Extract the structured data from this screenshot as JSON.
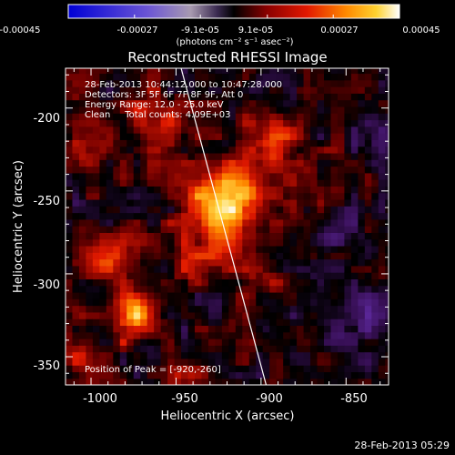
{
  "chart_data": {
    "type": "heatmap",
    "title": "Reconstructed RHESSI Image",
    "xlabel": "Heliocentric X (arcsec)",
    "ylabel": "Heliocentric Y (arcsec)",
    "xlim": [
      -1015,
      -825
    ],
    "ylim": [
      -367,
      -176
    ],
    "x_ticks": [
      -1000,
      -950,
      -900,
      -850
    ],
    "y_ticks": [
      -200,
      -250,
      -300,
      -350
    ],
    "colorbar": {
      "ticks": [
        "-0.00045",
        "-0.00027",
        "-9.1e-05",
        "9.1e-05",
        "0.00027",
        "0.00045"
      ],
      "range": [
        -0.00045,
        0.00045
      ],
      "units": "(photons cm⁻² s⁻¹ asec⁻²)"
    },
    "annotations": [
      "28-Feb-2013 10:44:12.000 to 10:47:28.000",
      "Detectors: 3F 5F 6F 7F 8F 9F, Att 0",
      "Energy Range: 12.0 - 25.0 keV",
      "Clean     Total counts: 4.09E+03"
    ],
    "peak_label": "Position of Peak = [-920,-260]",
    "peak": {
      "x": -920,
      "y": -260
    },
    "limb_line": [
      [
        -947,
        -176
      ],
      [
        -897,
        -367
      ]
    ],
    "sources": [
      {
        "x": -922,
        "y": -258,
        "sigma": 14,
        "amp": 0.00045
      },
      {
        "x": -895,
        "y": -220,
        "sigma": 11,
        "amp": 0.0002
      },
      {
        "x": -975,
        "y": -325,
        "sigma": 10,
        "amp": 0.0003
      },
      {
        "x": -990,
        "y": -290,
        "sigma": 12,
        "amp": 0.00018
      },
      {
        "x": -960,
        "y": -210,
        "sigma": 12,
        "amp": 0.00016
      },
      {
        "x": -1000,
        "y": -220,
        "sigma": 12,
        "amp": 0.00012
      },
      {
        "x": -900,
        "y": -300,
        "sigma": 10,
        "amp": 0.00012
      },
      {
        "x": -870,
        "y": -250,
        "sigma": 12,
        "amp": 0.00012
      },
      {
        "x": -945,
        "y": -360,
        "sigma": 10,
        "amp": 0.0001
      },
      {
        "x": -1005,
        "y": -350,
        "sigma": 10,
        "amp": 0.00014
      },
      {
        "x": -940,
        "y": -290,
        "sigma": 10,
        "amp": 0.00012
      },
      {
        "x": -840,
        "y": -325,
        "sigma": 16,
        "amp": -0.00012
      },
      {
        "x": -855,
        "y": -270,
        "sigma": 10,
        "amp": -9e-05
      },
      {
        "x": -830,
        "y": -215,
        "sigma": 10,
        "amp": -8e-05
      }
    ]
  },
  "footer": {
    "timestamp": "28-Feb-2013 05:29"
  }
}
